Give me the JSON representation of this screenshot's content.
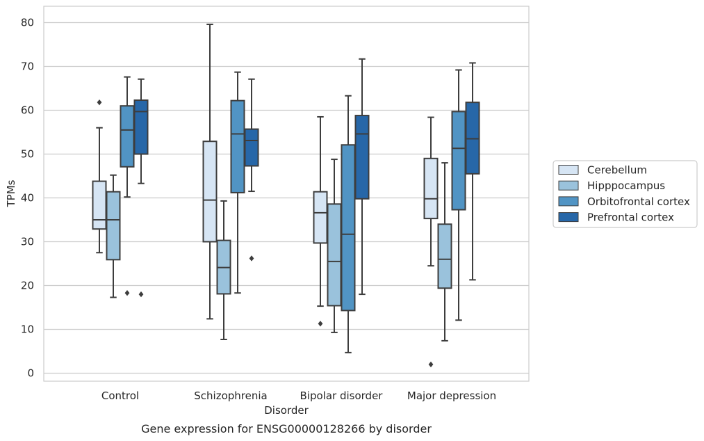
{
  "chart_data": {
    "type": "box",
    "caption": "Gene expression for ENSG00000128266 by disorder",
    "xlabel": "Disorder",
    "ylabel": "TPMs",
    "ylim": [
      -1.8,
      83.5
    ],
    "yticks": [
      0,
      10,
      20,
      30,
      40,
      50,
      60,
      70,
      80
    ],
    "grid": "horizontal",
    "legend_position": "right",
    "categories": [
      "Control",
      "Schizophrenia",
      "Bipolar disorder",
      "Major depression"
    ],
    "series": [
      {
        "name": "Cerebellum",
        "color": "#d6e5f4",
        "boxes": [
          {
            "whisker_low": 27.5,
            "q1": 32.9,
            "median": 35.0,
            "q3": 43.8,
            "whisker_high": 56.0,
            "outliers": [
              61.8
            ]
          },
          {
            "whisker_low": 12.4,
            "q1": 30.0,
            "median": 39.5,
            "q3": 52.9,
            "whisker_high": 79.6,
            "outliers": []
          },
          {
            "whisker_low": 15.3,
            "q1": 29.7,
            "median": 36.6,
            "q3": 41.4,
            "whisker_high": 58.5,
            "outliers": [
              11.3
            ]
          },
          {
            "whisker_low": 24.5,
            "q1": 35.3,
            "median": 39.8,
            "q3": 49.0,
            "whisker_high": 58.4,
            "outliers": [
              2.0
            ]
          }
        ]
      },
      {
        "name": "Hipppocampus",
        "color": "#9ac2dc",
        "boxes": [
          {
            "whisker_low": 17.3,
            "q1": 25.9,
            "median": 35.0,
            "q3": 41.4,
            "whisker_high": 45.2,
            "outliers": []
          },
          {
            "whisker_low": 7.7,
            "q1": 18.1,
            "median": 24.1,
            "q3": 30.3,
            "whisker_high": 39.3,
            "outliers": []
          },
          {
            "whisker_low": 9.3,
            "q1": 15.4,
            "median": 25.5,
            "q3": 38.6,
            "whisker_high": 48.8,
            "outliers": []
          },
          {
            "whisker_low": 7.4,
            "q1": 19.4,
            "median": 26.0,
            "q3": 34.0,
            "whisker_high": 48.0,
            "outliers": []
          }
        ]
      },
      {
        "name": "Orbitofrontal cortex",
        "color": "#5194c4",
        "boxes": [
          {
            "whisker_low": 40.2,
            "q1": 47.1,
            "median": 55.5,
            "q3": 61.0,
            "whisker_high": 67.6,
            "outliers": [
              18.3
            ]
          },
          {
            "whisker_low": 18.3,
            "q1": 41.2,
            "median": 54.6,
            "q3": 62.2,
            "whisker_high": 68.7,
            "outliers": []
          },
          {
            "whisker_low": 4.7,
            "q1": 14.3,
            "median": 31.7,
            "q3": 52.1,
            "whisker_high": 63.3,
            "outliers": []
          },
          {
            "whisker_low": 12.1,
            "q1": 37.3,
            "median": 51.3,
            "q3": 59.7,
            "whisker_high": 69.2,
            "outliers": []
          }
        ]
      },
      {
        "name": "Prefrontal cortex",
        "color": "#2767a8",
        "boxes": [
          {
            "whisker_low": 43.3,
            "q1": 50.0,
            "median": 59.7,
            "q3": 62.3,
            "whisker_high": 67.1,
            "outliers": [
              18.0
            ]
          },
          {
            "whisker_low": 41.5,
            "q1": 47.3,
            "median": 53.1,
            "q3": 55.7,
            "whisker_high": 67.1,
            "outliers": [
              26.2
            ]
          },
          {
            "whisker_low": 18.0,
            "q1": 39.8,
            "median": 54.6,
            "q3": 58.8,
            "whisker_high": 71.7,
            "outliers": []
          },
          {
            "whisker_low": 21.3,
            "q1": 45.5,
            "median": 53.5,
            "q3": 61.8,
            "whisker_high": 70.8,
            "outliers": []
          }
        ]
      }
    ]
  }
}
